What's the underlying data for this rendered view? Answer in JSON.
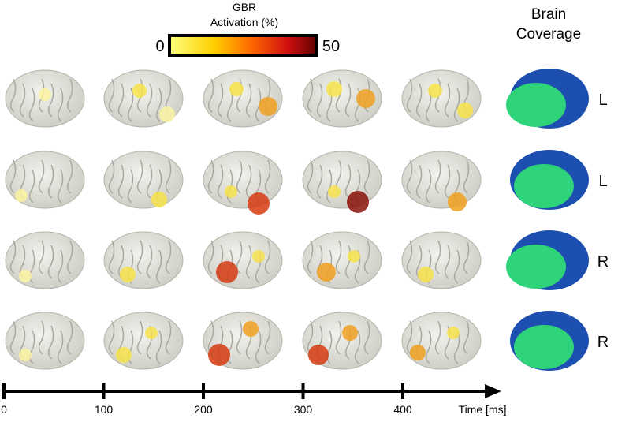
{
  "colorbar": {
    "title_line1": "GBR",
    "title_line2": "Activation (%)",
    "min": 0,
    "max": 50
  },
  "coverage_title": [
    "Brain",
    "Coverage"
  ],
  "row_labels": [
    "L",
    "L",
    "R",
    "R"
  ],
  "time_axis": {
    "ticks": [
      0,
      100,
      200,
      300,
      400
    ],
    "label": "Time [ms]"
  }
}
